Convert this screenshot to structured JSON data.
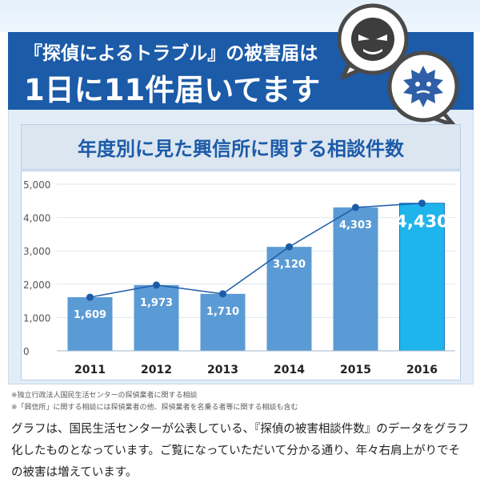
{
  "header": {
    "line1": "『探偵によるトラブル』の被害届は",
    "line2": "1日に11件届いてます"
  },
  "icons": {
    "bubble_front": "angry-face-speech-bubble-icon",
    "bubble_back": "spiky-face-speech-bubble-icon"
  },
  "colors": {
    "brand_blue": "#1c5ba8",
    "bar": "#5b9bd5",
    "highlight_bar": "#1fb5ec",
    "line": "#1c5ba8"
  },
  "notes": [
    "※独立行政法人国民生活センターの探偵業者に関する相談",
    "※「興信所」に関する相談には探偵業者の他、探偵業者を名乗る者等に関する相談も含む"
  ],
  "body_text": "グラフは、国民生活センターが公表している、『探偵の被害相談件数』のデータをグラフ化したものとなっています。ご覧になっていただいて分かる通り、年々右肩上がりでその被害は増えています。",
  "chart_data": {
    "type": "bar",
    "title": "年度別に見た興信所に関する相談件数",
    "categories": [
      "2011",
      "2012",
      "2013",
      "2014",
      "2015",
      "2016"
    ],
    "values": [
      1609,
      1973,
      1710,
      3120,
      4303,
      4430
    ],
    "value_labels": [
      "1,609",
      "1,973",
      "1,710",
      "3,120",
      "4,303",
      "4,430"
    ],
    "ylim": [
      0,
      5000
    ],
    "yticks": [
      0,
      1000,
      2000,
      3000,
      4000,
      5000
    ],
    "ytick_labels": [
      "0",
      "1,000",
      "2,000",
      "3,000",
      "4,000",
      "5,000"
    ],
    "overlay_line": true,
    "highlight_category": "2016",
    "grid": true
  }
}
